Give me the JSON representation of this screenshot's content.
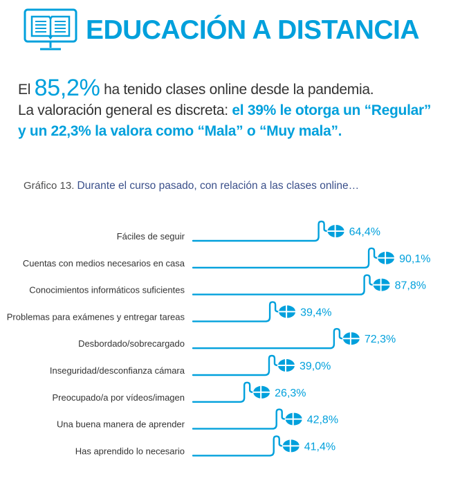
{
  "header": {
    "title": "EDUCACIÓN A DISTANCIA",
    "icon": "open-book-monitor-icon",
    "accent_color": "#00a0dc"
  },
  "intro": {
    "line1_prefix": "El",
    "line1_percent": "85,2%",
    "line1_suffix": "ha tenido clases online desde la pandemia.",
    "line2_prefix": "La valoración general es discreta:",
    "line2_highlight": "el 39% le otorga un “Regular”",
    "line3_highlight": "y un 22,3% la valora como “Mala” o “Muy mala”."
  },
  "caption": {
    "label": "Gráfico 13.",
    "text": "Durante el curso pasado, con relación a las clases online…"
  },
  "chart_data": {
    "type": "bar",
    "orientation": "horizontal",
    "marker_icon": "computer-mouse-icon",
    "bar_color": "#00a0dc",
    "xlim": [
      0,
      100
    ],
    "grid": false,
    "categories": [
      "Fáciles de seguir",
      "Cuentas con medios necesarios en casa",
      "Conocimientos informáticos suficientes",
      "Problemas para exámenes y entregar tareas",
      "Desbordado/sobrecargado",
      "Inseguridad/desconfianza cámara",
      "Preocupado/a por vídeos/imagen",
      "Una buena manera de aprender",
      "Has aprendido lo necesario"
    ],
    "values": [
      64.4,
      90.1,
      87.8,
      39.4,
      72.3,
      39.0,
      26.3,
      42.8,
      41.4
    ],
    "value_labels": [
      "64,4%",
      "90,1%",
      "87,8%",
      "39,4%",
      "72,3%",
      "39,0%",
      "26,3%",
      "42,8%",
      "41,4%"
    ]
  }
}
